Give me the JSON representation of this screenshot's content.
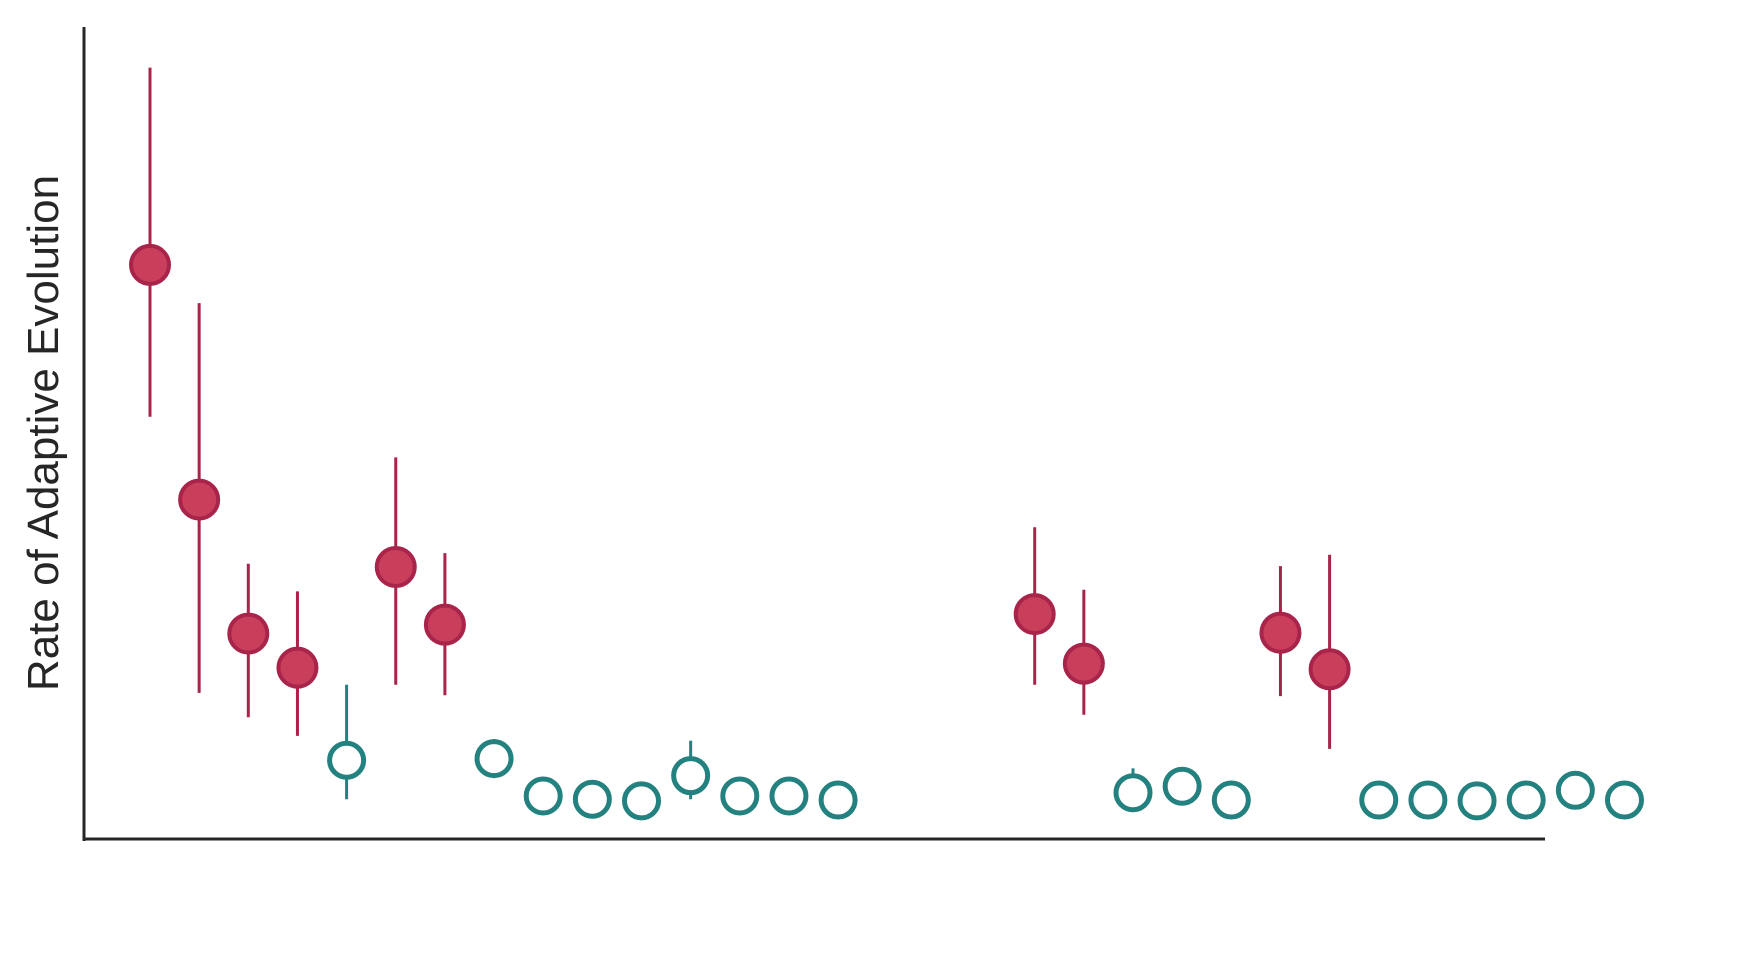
{
  "chart_data": {
    "type": "scatter",
    "title": "",
    "xlabel": "",
    "ylabel": "Rate of Adaptive Evolution",
    "ylim": [
      0,
      1
    ],
    "xlim": [
      0.5,
      30.5
    ],
    "grid": false,
    "legend": "none",
    "colors": {
      "significant": "#c93e5b",
      "significant_edge": "#a8244a",
      "not_significant": "#23817f",
      "axis": "#262626"
    },
    "points": [
      {
        "x": 1,
        "y": 0.707,
        "err_low": 0.52,
        "err_high": 0.95,
        "significant": true
      },
      {
        "x": 2,
        "y": 0.418,
        "err_low": 0.18,
        "err_high": 0.66,
        "significant": true
      },
      {
        "x": 3,
        "y": 0.253,
        "err_low": 0.15,
        "err_high": 0.339,
        "significant": true
      },
      {
        "x": 4,
        "y": 0.211,
        "err_low": 0.127,
        "err_high": 0.305,
        "significant": true
      },
      {
        "x": 5,
        "y": 0.097,
        "err_low": 0.049,
        "err_high": 0.19,
        "significant": false
      },
      {
        "x": 6,
        "y": 0.335,
        "err_low": 0.19,
        "err_high": 0.47,
        "significant": true
      },
      {
        "x": 7,
        "y": 0.264,
        "err_low": 0.177,
        "err_high": 0.352,
        "significant": true
      },
      {
        "x": 8,
        "y": 0.099,
        "err_low": 0.075,
        "err_high": 0.123,
        "significant": false
      },
      {
        "x": 9,
        "y": 0.053,
        "err_low": 0.053,
        "err_high": 0.053,
        "significant": false
      },
      {
        "x": 10,
        "y": 0.049,
        "err_low": 0.049,
        "err_high": 0.049,
        "significant": false
      },
      {
        "x": 11,
        "y": 0.047,
        "err_low": 0.047,
        "err_high": 0.047,
        "significant": false
      },
      {
        "x": 12,
        "y": 0.078,
        "err_low": 0.049,
        "err_high": 0.121,
        "significant": false
      },
      {
        "x": 13,
        "y": 0.053,
        "err_low": 0.053,
        "err_high": 0.053,
        "significant": false
      },
      {
        "x": 14,
        "y": 0.053,
        "err_low": 0.053,
        "err_high": 0.053,
        "significant": false
      },
      {
        "x": 15,
        "y": 0.048,
        "err_low": 0.048,
        "err_high": 0.048,
        "significant": false
      },
      {
        "x": 19,
        "y": 0.277,
        "err_low": 0.19,
        "err_high": 0.384,
        "significant": true
      },
      {
        "x": 20,
        "y": 0.216,
        "err_low": 0.153,
        "err_high": 0.307,
        "significant": true
      },
      {
        "x": 21,
        "y": 0.057,
        "err_low": 0.057,
        "err_high": 0.087,
        "significant": false
      },
      {
        "x": 22,
        "y": 0.065,
        "err_low": 0.065,
        "err_high": 0.065,
        "significant": false
      },
      {
        "x": 23,
        "y": 0.048,
        "err_low": 0.048,
        "err_high": 0.048,
        "significant": false
      },
      {
        "x": 24,
        "y": 0.254,
        "err_low": 0.176,
        "err_high": 0.336,
        "significant": true
      },
      {
        "x": 25,
        "y": 0.209,
        "err_low": 0.111,
        "err_high": 0.35,
        "significant": true
      },
      {
        "x": 26,
        "y": 0.048,
        "err_low": 0.048,
        "err_high": 0.048,
        "significant": false
      },
      {
        "x": 27,
        "y": 0.048,
        "err_low": 0.048,
        "err_high": 0.048,
        "significant": false
      },
      {
        "x": 28,
        "y": 0.047,
        "err_low": 0.047,
        "err_high": 0.047,
        "significant": false
      },
      {
        "x": 29,
        "y": 0.048,
        "err_low": 0.048,
        "err_high": 0.048,
        "significant": false
      },
      {
        "x": 30,
        "y": 0.06,
        "err_low": 0.06,
        "err_high": 0.06,
        "significant": false
      },
      {
        "x": 31,
        "y": 0.048,
        "err_low": 0.048,
        "err_high": 0.048,
        "significant": false
      }
    ]
  }
}
